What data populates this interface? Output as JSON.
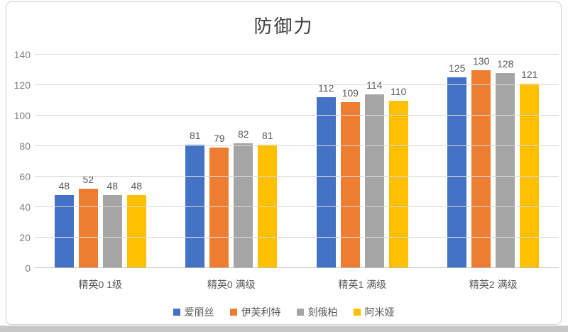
{
  "chart_data": {
    "type": "bar",
    "title": "防御力",
    "categories": [
      "精英0 1级",
      "精英0 满级",
      "精英1 满级",
      "精英2 满级"
    ],
    "series": [
      {
        "name": "爱丽丝",
        "color": "#4472C4",
        "values": [
          48,
          81,
          112,
          125
        ]
      },
      {
        "name": "伊芙利特",
        "color": "#ED7D31",
        "values": [
          52,
          79,
          109,
          130
        ]
      },
      {
        "name": "刻俄柏",
        "color": "#A5A5A5",
        "values": [
          48,
          82,
          114,
          128
        ]
      },
      {
        "name": "阿米娅",
        "color": "#FFC000",
        "values": [
          48,
          81,
          110,
          121
        ]
      }
    ],
    "ylim": [
      0,
      140
    ],
    "yticks": [
      0,
      20,
      40,
      60,
      80,
      100,
      120,
      140
    ],
    "xlabel": "",
    "ylabel": "",
    "grid": true,
    "data_labels": true,
    "legend_position": "bottom"
  },
  "palette": {
    "gridline": "#d9d9d9",
    "axis_line": "#bfbfbf",
    "tick_text": "#7f7f7f",
    "label_text": "#595959",
    "title_text": "#404040",
    "card_border": "#cfcfcf",
    "page_strip": "#c7c7c7"
  }
}
